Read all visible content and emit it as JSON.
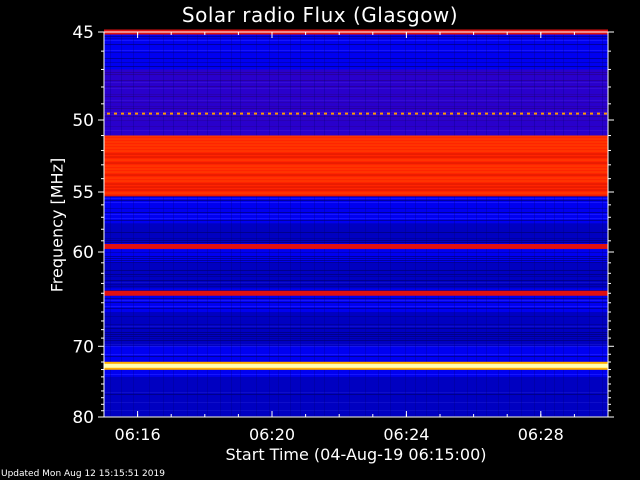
{
  "chart_data": {
    "type": "heatmap",
    "title": "Solar radio Flux (Glasgow)",
    "xlabel": "Start Time (04-Aug-19 06:15:00)",
    "ylabel": "Frequency [MHz]",
    "x_ticks": [
      "06:16",
      "06:20",
      "06:24",
      "06:28"
    ],
    "x_tick_minutes": [
      1,
      5,
      9,
      13
    ],
    "x_range_minutes": [
      0,
      15
    ],
    "y_ticks": [
      45,
      50,
      55,
      60,
      70,
      80
    ],
    "y_range_mhz": [
      45,
      80
    ],
    "y_scale": "reciprocal",
    "colormap": [
      "#0000ff",
      "#000080",
      "#ff2a00",
      "#ff7000",
      "#ffff80"
    ],
    "bands": [
      {
        "mhz": 45.0,
        "level": "red"
      },
      {
        "mhz": 49.6,
        "level": "orange-dotted"
      },
      {
        "mhz": 51.0,
        "level": "red",
        "to_mhz": 55.3
      },
      {
        "mhz": 59.5,
        "level": "red"
      },
      {
        "mhz": 64.0,
        "level": "red"
      },
      {
        "mhz": 72.5,
        "level": "yellow"
      }
    ],
    "grid": false
  },
  "footer": {
    "updated": "Updated Mon Aug 12 15:15:51 2019"
  }
}
